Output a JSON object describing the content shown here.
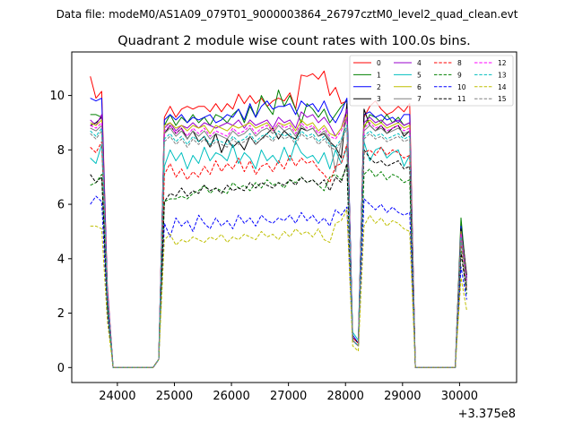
{
  "suptitle": "Data file: modeM0/AS1A09_079T01_9000003864_26797cztM0_level2_quad_clean.evt",
  "chart_data": {
    "type": "line",
    "title": "Quadrant 2 module wise count rates with 100.0s bins.",
    "xlabel": "",
    "ylabel": "",
    "offset_text": "+3.375e8",
    "x_start": 23525,
    "x_step": 100,
    "xlim": [
      23200,
      31000
    ],
    "ylim": [
      -0.55,
      11.6
    ],
    "xticks": [
      24000,
      25000,
      26000,
      27000,
      28000,
      29000,
      30000
    ],
    "yticks": [
      0,
      2,
      4,
      6,
      8,
      10
    ],
    "legend_position": "top-right",
    "series": [
      {
        "name": "0",
        "color": "#ff0000",
        "dash": "solid",
        "values": [
          10.7,
          9.9,
          10.15,
          3,
          0,
          0,
          0,
          0,
          0,
          0,
          0,
          0,
          0.3,
          9.2,
          9.6,
          9.2,
          9.5,
          9.6,
          9.5,
          9.6,
          9.6,
          9.4,
          9.7,
          9.4,
          9.7,
          9.5,
          10.05,
          9.7,
          10.0,
          9.7,
          9.9,
          9.6,
          9.8,
          9.9,
          9.8,
          10.1,
          9.5,
          10.75,
          10.7,
          10.8,
          10.6,
          10.9,
          10,
          10.3,
          9.7,
          9.8,
          1.0,
          0.8,
          9.2,
          9.6,
          9.8,
          9.5,
          9.3,
          9.4,
          9.6,
          9.4,
          9.7,
          0,
          0,
          0,
          0,
          0,
          0,
          0,
          0,
          5.3,
          3.3
        ]
      },
      {
        "name": "1",
        "color": "#008000",
        "dash": "solid",
        "values": [
          9.3,
          9.3,
          9.2,
          2.8,
          0,
          0,
          0,
          0,
          0,
          0,
          0,
          0,
          0.3,
          8.9,
          9.3,
          8.9,
          9.2,
          9.0,
          9.3,
          9.0,
          9.2,
          8.9,
          9.3,
          9.2,
          9.0,
          9.3,
          9.5,
          9.0,
          9.6,
          9.2,
          10.0,
          9.6,
          9.3,
          10.2,
          9.6,
          10.0,
          9.5,
          9.0,
          9.7,
          9.5,
          9.2,
          9.5,
          9.0,
          9.3,
          9.6,
          9.8,
          1.0,
          0.8,
          8.8,
          9.3,
          9.2,
          9.0,
          9.3,
          9.0,
          9.2,
          8.9,
          9.0,
          0,
          0,
          0,
          0,
          0,
          0,
          0,
          0,
          5.5,
          3.2
        ]
      },
      {
        "name": "2",
        "color": "#0000ff",
        "dash": "solid",
        "values": [
          9.9,
          9.8,
          9.9,
          2.9,
          0,
          0,
          0,
          0,
          0,
          0,
          0,
          0,
          0.3,
          9.1,
          9.3,
          9.1,
          9.3,
          9.0,
          9.2,
          9.1,
          9.2,
          9.3,
          9.0,
          9.1,
          9.3,
          9.2,
          9.5,
          9.1,
          9.7,
          9.2,
          9.6,
          9.8,
          9.5,
          9.6,
          9.6,
          9.7,
          9.3,
          9.8,
          9.6,
          9.7,
          9.4,
          9.8,
          9.3,
          9.0,
          9.4,
          9.9,
          1.2,
          0.9,
          9.3,
          9.4,
          9.2,
          9.3,
          9.1,
          9.2,
          9.0,
          9.3,
          9.3,
          0,
          0,
          0,
          0,
          0,
          0,
          0,
          0,
          5.2,
          3.3
        ]
      },
      {
        "name": "3",
        "color": "#000000",
        "dash": "solid",
        "values": [
          8.9,
          9.0,
          9.2,
          2.7,
          0,
          0,
          0,
          0,
          0,
          0,
          0,
          0,
          0.3,
          8.6,
          8.9,
          8.6,
          8.8,
          8.4,
          8.7,
          8.3,
          8.5,
          8.1,
          8.6,
          7.9,
          8.4,
          8.1,
          8.3,
          8.0,
          8.5,
          8.2,
          8.4,
          8.6,
          8.8,
          8.4,
          8.7,
          8.5,
          8.4,
          8.8,
          8.7,
          8.8,
          8.5,
          8.6,
          8.3,
          8.1,
          7.7,
          9.7,
          1.1,
          0.9,
          9.5,
          8.9,
          8.7,
          8.9,
          8.6,
          8.8,
          8.9,
          8.5,
          8.7,
          0,
          0,
          0,
          0,
          0,
          0,
          0,
          0,
          5.1,
          3.4
        ]
      },
      {
        "name": "4",
        "color": "#9900cc",
        "dash": "solid",
        "values": [
          9.1,
          8.9,
          9.3,
          2.8,
          0,
          0,
          0,
          0,
          0,
          0,
          0,
          0,
          0.3,
          8.8,
          9.0,
          8.7,
          8.9,
          8.8,
          9.0,
          8.8,
          9.0,
          8.9,
          8.8,
          8.9,
          9.0,
          8.9,
          9.1,
          8.8,
          9.1,
          8.9,
          9.0,
          9.1,
          8.8,
          9.2,
          9.0,
          9.1,
          8.8,
          9.4,
          9.2,
          9.3,
          9.0,
          9.2,
          8.9,
          8.5,
          8.8,
          9.5,
          1.0,
          0.8,
          9.0,
          9.2,
          9.0,
          9.1,
          8.9,
          9.0,
          9.1,
          8.9,
          9.0,
          0,
          0,
          0,
          0,
          0,
          0,
          0,
          0,
          5.0,
          3.2
        ]
      },
      {
        "name": "5",
        "color": "#00bfbf",
        "dash": "solid",
        "values": [
          7.7,
          7.5,
          8.2,
          2.5,
          0,
          0,
          0,
          0,
          0,
          0,
          0,
          0,
          0.3,
          7.4,
          8.0,
          7.6,
          7.9,
          7.3,
          7.8,
          7.5,
          8.1,
          7.6,
          7.9,
          7.8,
          7.6,
          8.2,
          7.5,
          7.9,
          7.7,
          7.3,
          8.0,
          7.6,
          7.8,
          7.5,
          8.1,
          7.6,
          8.3,
          7.9,
          7.7,
          7.8,
          7.5,
          7.9,
          7.3,
          8.0,
          7.5,
          8.1,
          1.3,
          1.0,
          8.3,
          7.6,
          8.0,
          8.1,
          7.7,
          7.9,
          8.0,
          7.4,
          7.8,
          0,
          0,
          0,
          0,
          0,
          0,
          0,
          0,
          4.8,
          3.0
        ]
      },
      {
        "name": "6",
        "color": "#bfbf00",
        "dash": "solid",
        "values": [
          9.0,
          8.9,
          9.1,
          2.7,
          0,
          0,
          0,
          0,
          0,
          0,
          0,
          0,
          0.3,
          8.9,
          9.0,
          8.8,
          8.9,
          8.7,
          8.9,
          8.8,
          8.9,
          8.6,
          8.9,
          8.8,
          8.7,
          8.9,
          8.8,
          8.9,
          9.0,
          8.8,
          8.9,
          9.0,
          8.7,
          9.0,
          8.9,
          9.0,
          8.7,
          9.1,
          8.9,
          9.0,
          8.7,
          8.9,
          8.6,
          8.5,
          8.8,
          9.3,
          1.0,
          0.8,
          8.9,
          9.1,
          8.9,
          9.0,
          8.8,
          8.9,
          9.0,
          8.8,
          8.9,
          0,
          0,
          0,
          0,
          0,
          0,
          0,
          0,
          5.0,
          3.1
        ]
      },
      {
        "name": "7",
        "color": "#808080",
        "dash": "solid",
        "values": [
          8.8,
          8.7,
          8.9,
          2.7,
          0,
          0,
          0,
          0,
          0,
          0,
          0,
          0,
          0.3,
          8.6,
          8.8,
          8.5,
          8.7,
          8.4,
          8.7,
          8.5,
          8.7,
          8.4,
          8.6,
          8.5,
          8.4,
          8.7,
          8.5,
          8.6,
          8.8,
          8.5,
          8.7,
          8.8,
          8.6,
          8.9,
          8.7,
          8.8,
          8.5,
          8.9,
          8.7,
          8.8,
          8.5,
          8.7,
          8.4,
          7.2,
          8.3,
          9.2,
          1.0,
          0.8,
          8.7,
          8.9,
          8.7,
          8.8,
          8.6,
          8.7,
          8.8,
          8.6,
          8.7,
          0,
          0,
          0,
          0,
          0,
          0,
          0,
          0,
          4.9,
          3.0
        ]
      },
      {
        "name": "8",
        "color": "#ff0000",
        "dash": "dashed",
        "values": [
          8.1,
          7.9,
          8.3,
          2.5,
          0,
          0,
          0,
          0,
          0,
          0,
          0,
          0,
          0.3,
          7.1,
          7.5,
          7.0,
          7.3,
          6.9,
          7.2,
          7.0,
          7.4,
          7.1,
          7.6,
          7.2,
          7.5,
          7.3,
          7.7,
          7.2,
          7.6,
          7.1,
          7.4,
          7.5,
          7.2,
          7.6,
          7.3,
          7.8,
          7.4,
          7.7,
          7.5,
          7.6,
          7.3,
          7.1,
          6.8,
          7.4,
          7.5,
          8.2,
          1.1,
          0.9,
          7.9,
          8.0,
          7.8,
          8.1,
          7.8,
          8.0,
          7.9,
          7.7,
          7.8,
          0,
          0,
          0,
          0,
          0,
          0,
          0,
          0,
          4.6,
          2.9
        ]
      },
      {
        "name": "9",
        "color": "#008000",
        "dash": "dashed",
        "values": [
          6.7,
          6.8,
          7.1,
          2.2,
          0,
          0,
          0,
          0,
          0,
          0,
          0,
          0,
          0.3,
          6.1,
          6.2,
          6.2,
          6.3,
          6.2,
          6.4,
          6.5,
          6.7,
          6.4,
          6.6,
          6.5,
          6.4,
          6.8,
          6.6,
          6.7,
          6.5,
          6.8,
          6.6,
          6.9,
          6.7,
          6.8,
          6.6,
          6.9,
          6.8,
          7.0,
          6.8,
          6.9,
          6.7,
          6.5,
          7.0,
          7.1,
          6.9,
          7.4,
          1.0,
          0.8,
          7.1,
          7.3,
          7.0,
          7.2,
          6.9,
          7.1,
          7.0,
          6.8,
          6.9,
          0,
          0,
          0,
          0,
          0,
          0,
          0,
          0,
          4.3,
          2.7
        ]
      },
      {
        "name": "10",
        "color": "#0000ff",
        "dash": "dashed",
        "values": [
          6.0,
          6.3,
          6.1,
          2.0,
          0,
          0,
          0,
          0,
          0,
          0,
          0,
          0,
          0.3,
          5.3,
          4.8,
          5.5,
          5.2,
          5.4,
          5.0,
          5.6,
          5.3,
          5.1,
          5.5,
          5.2,
          5.4,
          5.1,
          5.6,
          5.3,
          5.5,
          5.2,
          5.6,
          5.4,
          5.3,
          5.5,
          5.4,
          5.6,
          5.3,
          5.7,
          5.4,
          5.6,
          5.3,
          5.5,
          5.2,
          5.8,
          5.6,
          5.9,
          1.0,
          0.8,
          6.2,
          6.0,
          5.8,
          6.0,
          5.7,
          5.9,
          5.7,
          5.6,
          5.7,
          0,
          0,
          0,
          0,
          0,
          0,
          0,
          0,
          3.7,
          2.5
        ]
      },
      {
        "name": "11",
        "color": "#000000",
        "dash": "dashed",
        "values": [
          7.1,
          6.8,
          7.0,
          2.3,
          0,
          0,
          0,
          0,
          0,
          0,
          0,
          0,
          0.3,
          6.1,
          6.4,
          6.3,
          6.6,
          6.3,
          6.5,
          6.4,
          6.7,
          6.5,
          6.6,
          6.4,
          6.7,
          6.5,
          6.6,
          6.5,
          6.8,
          6.6,
          6.8,
          6.7,
          6.6,
          6.8,
          6.7,
          6.9,
          6.7,
          7.0,
          6.8,
          6.9,
          6.7,
          6.9,
          6.5,
          7.0,
          6.8,
          7.5,
          1.0,
          0.8,
          8.0,
          7.7,
          7.5,
          7.6,
          7.4,
          7.5,
          7.6,
          7.3,
          7.4,
          0,
          0,
          0,
          0,
          0,
          0,
          0,
          0,
          4.2,
          2.8
        ]
      },
      {
        "name": "12",
        "color": "#ff00ff",
        "dash": "dashed",
        "values": [
          8.9,
          8.8,
          9.0,
          2.7,
          0,
          0,
          0,
          0,
          0,
          0,
          0,
          0,
          0.3,
          8.7,
          8.9,
          8.6,
          8.8,
          8.5,
          8.8,
          8.6,
          8.8,
          8.5,
          8.7,
          8.6,
          8.5,
          8.8,
          8.6,
          8.7,
          8.9,
          8.6,
          8.8,
          8.9,
          8.7,
          9.0,
          8.8,
          8.9,
          8.6,
          9.0,
          8.8,
          8.9,
          8.6,
          8.8,
          8.5,
          8.4,
          8.7,
          9.2,
          1.0,
          0.8,
          8.8,
          9.0,
          8.8,
          8.9,
          8.7,
          8.8,
          8.9,
          8.7,
          8.8,
          0,
          0,
          0,
          0,
          0,
          0,
          0,
          0,
          4.9,
          3.1
        ]
      },
      {
        "name": "13",
        "color": "#00bfbf",
        "dash": "dashed",
        "values": [
          8.7,
          8.5,
          8.8,
          2.6,
          0,
          0,
          0,
          0,
          0,
          0,
          0,
          0,
          0.3,
          8.4,
          8.6,
          8.3,
          8.5,
          8.2,
          8.5,
          8.3,
          8.5,
          8.2,
          8.4,
          8.3,
          8.2,
          8.5,
          8.3,
          8.4,
          8.6,
          8.3,
          8.5,
          8.6,
          8.4,
          8.7,
          8.5,
          8.6,
          8.3,
          8.7,
          8.5,
          8.6,
          8.3,
          8.5,
          8.2,
          8.1,
          8.4,
          8.9,
          1.0,
          0.8,
          8.5,
          8.7,
          8.5,
          8.6,
          8.4,
          8.5,
          8.6,
          8.4,
          8.5,
          0,
          0,
          0,
          0,
          0,
          0,
          0,
          0,
          4.8,
          3.0
        ]
      },
      {
        "name": "14",
        "color": "#bfbf00",
        "dash": "dashed",
        "values": [
          5.2,
          5.2,
          5.1,
          1.7,
          0,
          0,
          0,
          0,
          0,
          0,
          0,
          0,
          0.3,
          4.7,
          4.9,
          4.5,
          4.7,
          4.6,
          4.8,
          4.7,
          4.6,
          4.8,
          4.7,
          4.9,
          4.6,
          4.8,
          4.7,
          4.9,
          4.8,
          4.7,
          5.0,
          4.8,
          4.9,
          4.7,
          5.0,
          4.8,
          5.1,
          4.9,
          5.0,
          4.8,
          5.1,
          4.7,
          4.6,
          5.3,
          5.4,
          5.8,
          0.8,
          0.6,
          5.2,
          5.6,
          5.3,
          5.5,
          5.2,
          5.4,
          5.3,
          5.1,
          5.0,
          0,
          0,
          0,
          0,
          0,
          0,
          0,
          0,
          3.3,
          2.1
        ]
      },
      {
        "name": "15",
        "color": "#808080",
        "dash": "dashed",
        "values": [
          8.6,
          8.4,
          8.7,
          2.6,
          0,
          0,
          0,
          0,
          0,
          0,
          0,
          0,
          0.3,
          8.3,
          8.5,
          8.2,
          8.4,
          8.1,
          8.4,
          8.2,
          8.4,
          8.1,
          8.3,
          8.2,
          8.1,
          8.4,
          8.2,
          8.3,
          8.5,
          8.2,
          8.4,
          8.5,
          8.3,
          8.6,
          8.4,
          8.5,
          8.2,
          8.6,
          8.4,
          8.5,
          8.2,
          8.4,
          8.1,
          8.0,
          8.3,
          8.8,
          1.0,
          0.8,
          8.4,
          8.6,
          8.4,
          8.5,
          8.3,
          8.4,
          8.5,
          8.3,
          8.4,
          0,
          0,
          0,
          0,
          0,
          0,
          0,
          0,
          4.7,
          3.0
        ]
      }
    ]
  }
}
